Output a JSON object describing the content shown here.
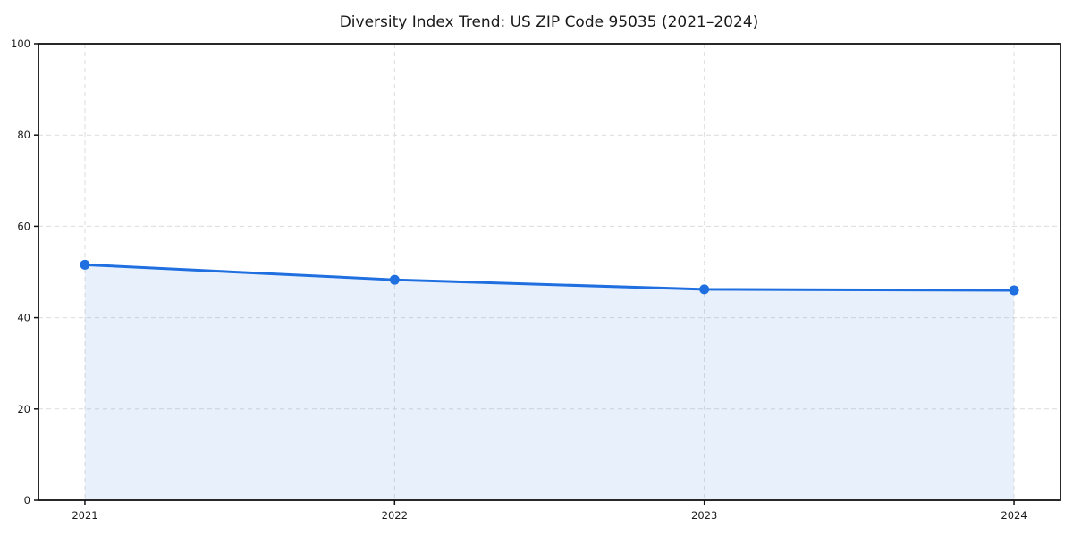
{
  "chart_data": {
    "type": "line",
    "title": "Diversity Index Trend: US ZIP Code 95035 (2021–2024)",
    "x": [
      2021,
      2022,
      2023,
      2024
    ],
    "series": [
      {
        "name": "Diversity Index",
        "values": [
          51.6,
          48.3,
          46.2,
          46.0
        ]
      }
    ],
    "xticks": [
      "2021",
      "2022",
      "2023",
      "2024"
    ],
    "yticks": [
      0,
      20,
      40,
      60,
      80,
      100
    ],
    "ylim": [
      0,
      100
    ],
    "xlabel": "",
    "ylabel": "",
    "legend": "none",
    "grid": {
      "visible": true,
      "style": "dashed",
      "color": "#dcdcdc"
    },
    "area_fill": true,
    "marker": "circle",
    "colors": {
      "line": "#1f6fe0",
      "marker": "#1f6fe0",
      "fill": "rgba(31,111,224,0.10)",
      "spine": "#111111",
      "text": "#1a1a1a",
      "background": "#ffffff"
    }
  }
}
